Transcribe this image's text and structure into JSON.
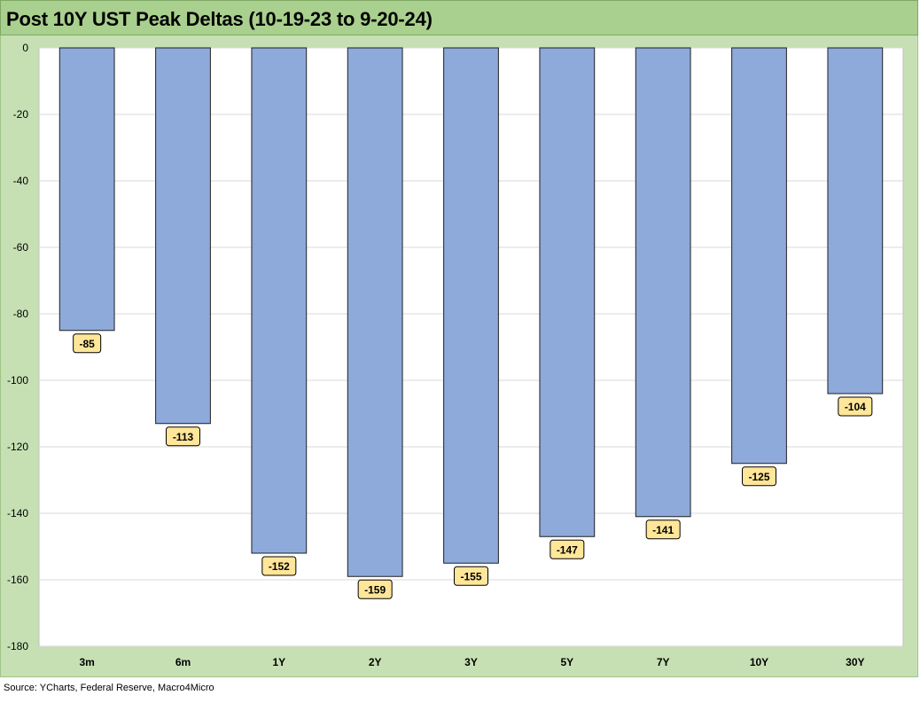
{
  "title": "Post 10Y UST Peak Deltas (10-19-23 to 9-20-24)",
  "source": "Source: YCharts, Federal Reserve, Macro4Micro",
  "colors": {
    "title_bg": "#a9d08e",
    "panel_bg": "#c6e0b4",
    "plot_bg": "#ffffff",
    "bar_fill": "#8eaadb",
    "bar_stroke": "#1f1f1f",
    "label_bg": "#ffe699",
    "gridline": "#d9d9d9"
  },
  "chart_data": {
    "type": "bar",
    "categories": [
      "3m",
      "6m",
      "1Y",
      "2Y",
      "3Y",
      "5Y",
      "7Y",
      "10Y",
      "30Y"
    ],
    "values": [
      -85,
      -113,
      -152,
      -159,
      -155,
      -147,
      -141,
      -125,
      -104
    ],
    "data_labels": [
      "-85",
      "-113",
      "-152",
      "-159",
      "-155",
      "-147",
      "-141",
      "-125",
      "-104"
    ],
    "ylim": [
      -180,
      0
    ],
    "yticks": [
      0,
      -20,
      -40,
      -60,
      -80,
      -100,
      -120,
      -140,
      -160,
      -180
    ],
    "ytick_labels": [
      "0",
      "-20",
      "-40",
      "-60",
      "-80",
      "-100",
      "-120",
      "-140",
      "-160",
      "-180"
    ],
    "grid": true,
    "legend": "none"
  }
}
